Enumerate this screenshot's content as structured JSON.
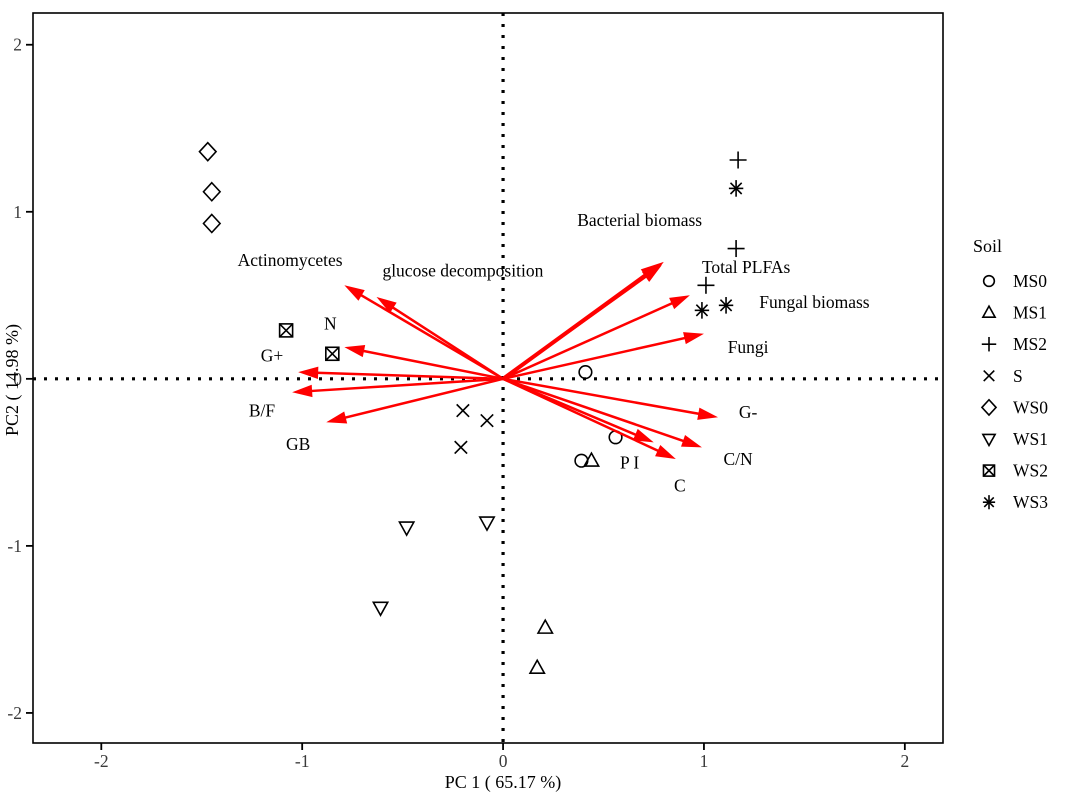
{
  "figure": {
    "background": "#ffffff",
    "axis_color": "#000000"
  },
  "chart_data": {
    "type": "scatter",
    "subtype": "pca-biplot",
    "title": "",
    "xlabel": "PC 1 ( 65.17 %)",
    "ylabel": "PC2 ( 14.98 %)",
    "xlim": [
      -2.34,
      2.19
    ],
    "ylim": [
      -2.18,
      2.19
    ],
    "x_tick_values": [
      -2,
      -1,
      0,
      1,
      2
    ],
    "x_tick_labels": [
      "-2",
      "-1",
      "0",
      "1",
      "2"
    ],
    "y_tick_values": [
      2,
      1,
      0,
      -1,
      -2
    ],
    "y_tick_labels": [
      "2",
      "1",
      "0",
      "-1",
      "-2"
    ],
    "grid": false,
    "zero_lines_style": "dotted",
    "arrow_color": "#ff0000",
    "point_color": "#000000",
    "legend": {
      "title": "Soil",
      "position": "right"
    },
    "series": [
      {
        "name": "MS0",
        "symbol": "circle",
        "points": [
          [
            0.41,
            0.04
          ],
          [
            0.56,
            -0.35
          ],
          [
            0.39,
            -0.49
          ]
        ]
      },
      {
        "name": "MS1",
        "symbol": "triangle-up",
        "points": [
          [
            0.44,
            -0.49
          ],
          [
            0.21,
            -1.49
          ],
          [
            0.17,
            -1.73
          ]
        ]
      },
      {
        "name": "MS2",
        "symbol": "plus",
        "points": [
          [
            1.17,
            1.31
          ],
          [
            1.16,
            0.78
          ],
          [
            1.01,
            0.56
          ]
        ]
      },
      {
        "name": "S",
        "symbol": "cross",
        "points": [
          [
            -0.2,
            -0.19
          ],
          [
            -0.08,
            -0.25
          ],
          [
            -0.21,
            -0.41
          ]
        ]
      },
      {
        "name": "WS0",
        "symbol": "diamond",
        "points": [
          [
            -1.47,
            1.36
          ],
          [
            -1.45,
            1.12
          ],
          [
            -1.45,
            0.93
          ]
        ]
      },
      {
        "name": "WS1",
        "symbol": "triangle-down",
        "points": [
          [
            -0.48,
            -0.89
          ],
          [
            -0.08,
            -0.86
          ],
          [
            -0.61,
            -1.37
          ]
        ]
      },
      {
        "name": "WS2",
        "symbol": "square-cross",
        "points": [
          [
            -1.08,
            0.29
          ],
          [
            -0.85,
            0.15
          ]
        ]
      },
      {
        "name": "WS3",
        "symbol": "asterisk",
        "points": [
          [
            1.16,
            1.14
          ],
          [
            1.11,
            0.44
          ],
          [
            0.99,
            0.41
          ]
        ]
      }
    ],
    "loadings": [
      {
        "label": "Actinomycetes",
        "x": -0.79,
        "y": 0.56,
        "label_x": -1.06,
        "label_y": 0.71,
        "emph": false
      },
      {
        "label": "glucose decomposition",
        "x": -0.63,
        "y": 0.49,
        "label_x": -0.2,
        "label_y": 0.65,
        "emph": false
      },
      {
        "label": "N",
        "x": -0.79,
        "y": 0.19,
        "label_x": -0.86,
        "label_y": 0.33,
        "emph": false
      },
      {
        "label": "G+",
        "x": -1.02,
        "y": 0.04,
        "label_x": -1.15,
        "label_y": 0.14,
        "emph": false
      },
      {
        "label": "B/F",
        "x": -1.05,
        "y": -0.08,
        "label_x": -1.2,
        "label_y": -0.19,
        "emph": false
      },
      {
        "label": "GB",
        "x": -0.88,
        "y": -0.26,
        "label_x": -1.02,
        "label_y": -0.39,
        "emph": false
      },
      {
        "label": "Bacterial biomass",
        "x": 0.8,
        "y": 0.7,
        "label_x": 0.68,
        "label_y": 0.95,
        "emph": true
      },
      {
        "label": "Total PLFAs",
        "x": 0.79,
        "y": 0.68,
        "label_x": 1.21,
        "label_y": 0.67,
        "emph": false
      },
      {
        "label": "Fungal biomass",
        "x": 0.93,
        "y": 0.5,
        "label_x": 1.55,
        "label_y": 0.46,
        "emph": false
      },
      {
        "label": "Fungi",
        "x": 1.0,
        "y": 0.27,
        "label_x": 1.22,
        "label_y": 0.19,
        "emph": false
      },
      {
        "label": "G-",
        "x": 1.07,
        "y": -0.23,
        "label_x": 1.22,
        "label_y": -0.2,
        "emph": false
      },
      {
        "label": "C/N",
        "x": 0.99,
        "y": -0.41,
        "label_x": 1.17,
        "label_y": -0.48,
        "emph": false
      },
      {
        "label": "C",
        "x": 0.86,
        "y": -0.48,
        "label_x": 0.88,
        "label_y": -0.64,
        "emph": false
      },
      {
        "label": "P I",
        "x": 0.75,
        "y": -0.38,
        "label_x": 0.63,
        "label_y": -0.5,
        "emph": false
      }
    ]
  }
}
